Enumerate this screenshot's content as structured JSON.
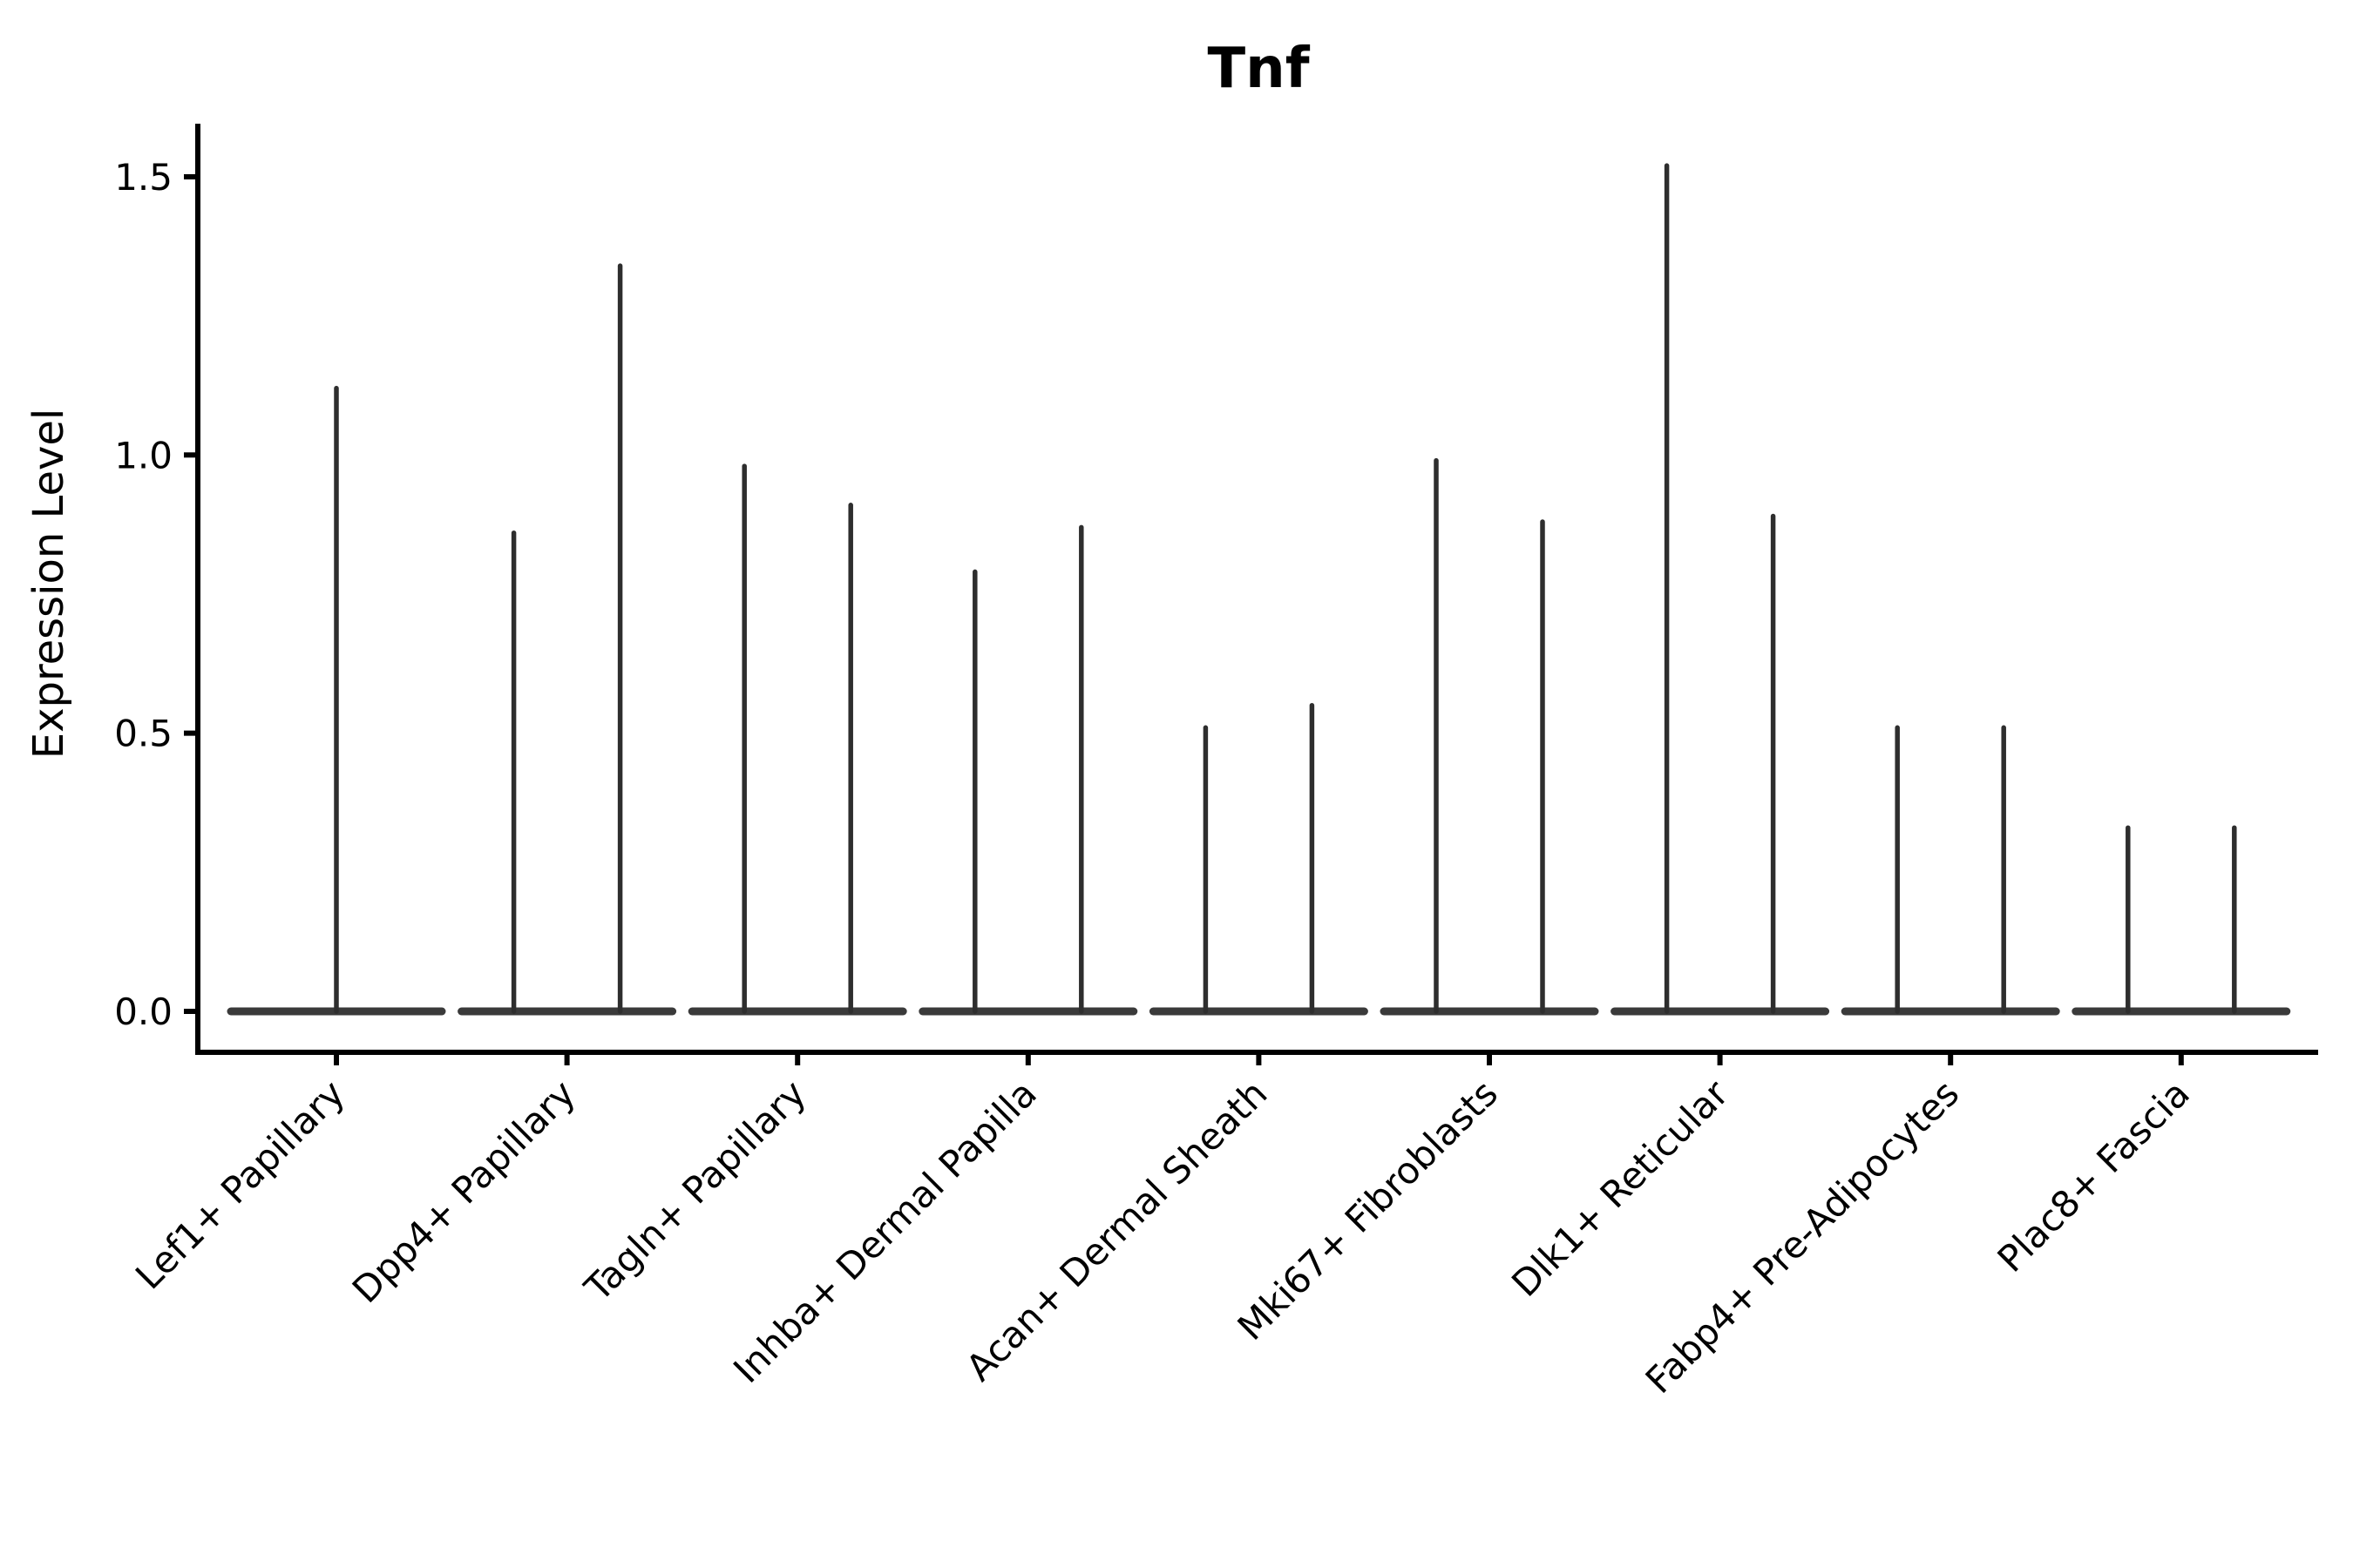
{
  "chart_data": {
    "type": "violin",
    "title": "Tnf",
    "ylabel": "Expression Level",
    "xlabel": "",
    "ylim": [
      -0.07,
      1.6
    ],
    "yticks": [
      0.0,
      0.5,
      1.0,
      1.5
    ],
    "ytick_labels": [
      "0.0",
      "0.5",
      "1.0",
      "1.5"
    ],
    "grid": false,
    "legend": "none",
    "style_note": "collapsed violin plot: each violin is a flat baseline at 0 with a thin vertical spike up to the max expression value",
    "categories": [
      "Lef1+ Papillary",
      "Dpp4+ Papillary",
      "Tagln+ Papillary",
      "Inhba+ Dermal Papilla",
      "Acan+ Dermal Sheath",
      "Mki67+ Fibroblasts",
      "Dlk1+ Reticular",
      "Fabp4+ Pre-Adipocytes",
      "Plac8+ Fascia"
    ],
    "groups": [
      {
        "label": "Lef1+ Papillary",
        "spike_max_values": [
          1.12
        ]
      },
      {
        "label": "Dpp4+ Papillary",
        "spike_max_values": [
          0.86,
          1.34
        ]
      },
      {
        "label": "Tagln+ Papillary",
        "spike_max_values": [
          0.98,
          0.91
        ]
      },
      {
        "label": "Inhba+ Dermal Papilla",
        "spike_max_values": [
          0.79,
          0.87
        ]
      },
      {
        "label": "Acan+ Dermal Sheath",
        "spike_max_values": [
          0.51,
          0.55
        ]
      },
      {
        "label": "Mki67+ Fibroblasts",
        "spike_max_values": [
          0.99,
          0.88
        ]
      },
      {
        "label": "Dlk1+ Reticular",
        "spike_max_values": [
          1.52,
          0.89
        ]
      },
      {
        "label": "Fabp4+ Pre-Adipocytes",
        "spike_max_values": [
          0.51,
          0.51
        ]
      },
      {
        "label": "Plac8+ Fascia",
        "spike_max_values": [
          0.33,
          0.33
        ]
      }
    ],
    "colors": {
      "spike": "#2e2e2e",
      "baseline": "#3a3a3a",
      "axis": "#000000",
      "text": "#000000",
      "background": "#ffffff"
    }
  }
}
